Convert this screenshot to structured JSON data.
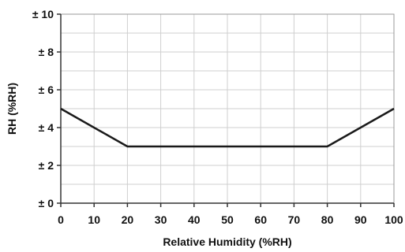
{
  "chart_data": {
    "type": "line",
    "xlabel": "Relative Humidity (%RH)",
    "ylabel": "RH (%RH)",
    "xlim": [
      0,
      100
    ],
    "ylim": [
      0,
      10
    ],
    "x_ticks": [
      0,
      10,
      20,
      30,
      40,
      50,
      60,
      70,
      80,
      90,
      100
    ],
    "x_tick_labels": [
      "0",
      "10",
      "20",
      "30",
      "40",
      "50",
      "60",
      "70",
      "80",
      "90",
      "100"
    ],
    "y_ticks": [
      0,
      2,
      4,
      6,
      8,
      10
    ],
    "y_tick_labels": [
      "± 0",
      "± 2",
      "± 4",
      "± 6",
      "± 8",
      "± 10"
    ],
    "grid": true,
    "minor_y_gridlines": true,
    "series": [
      {
        "x": [
          0,
          20,
          80,
          100
        ],
        "y": [
          5,
          3,
          3,
          5
        ],
        "color": "#1a1a1a"
      }
    ]
  }
}
